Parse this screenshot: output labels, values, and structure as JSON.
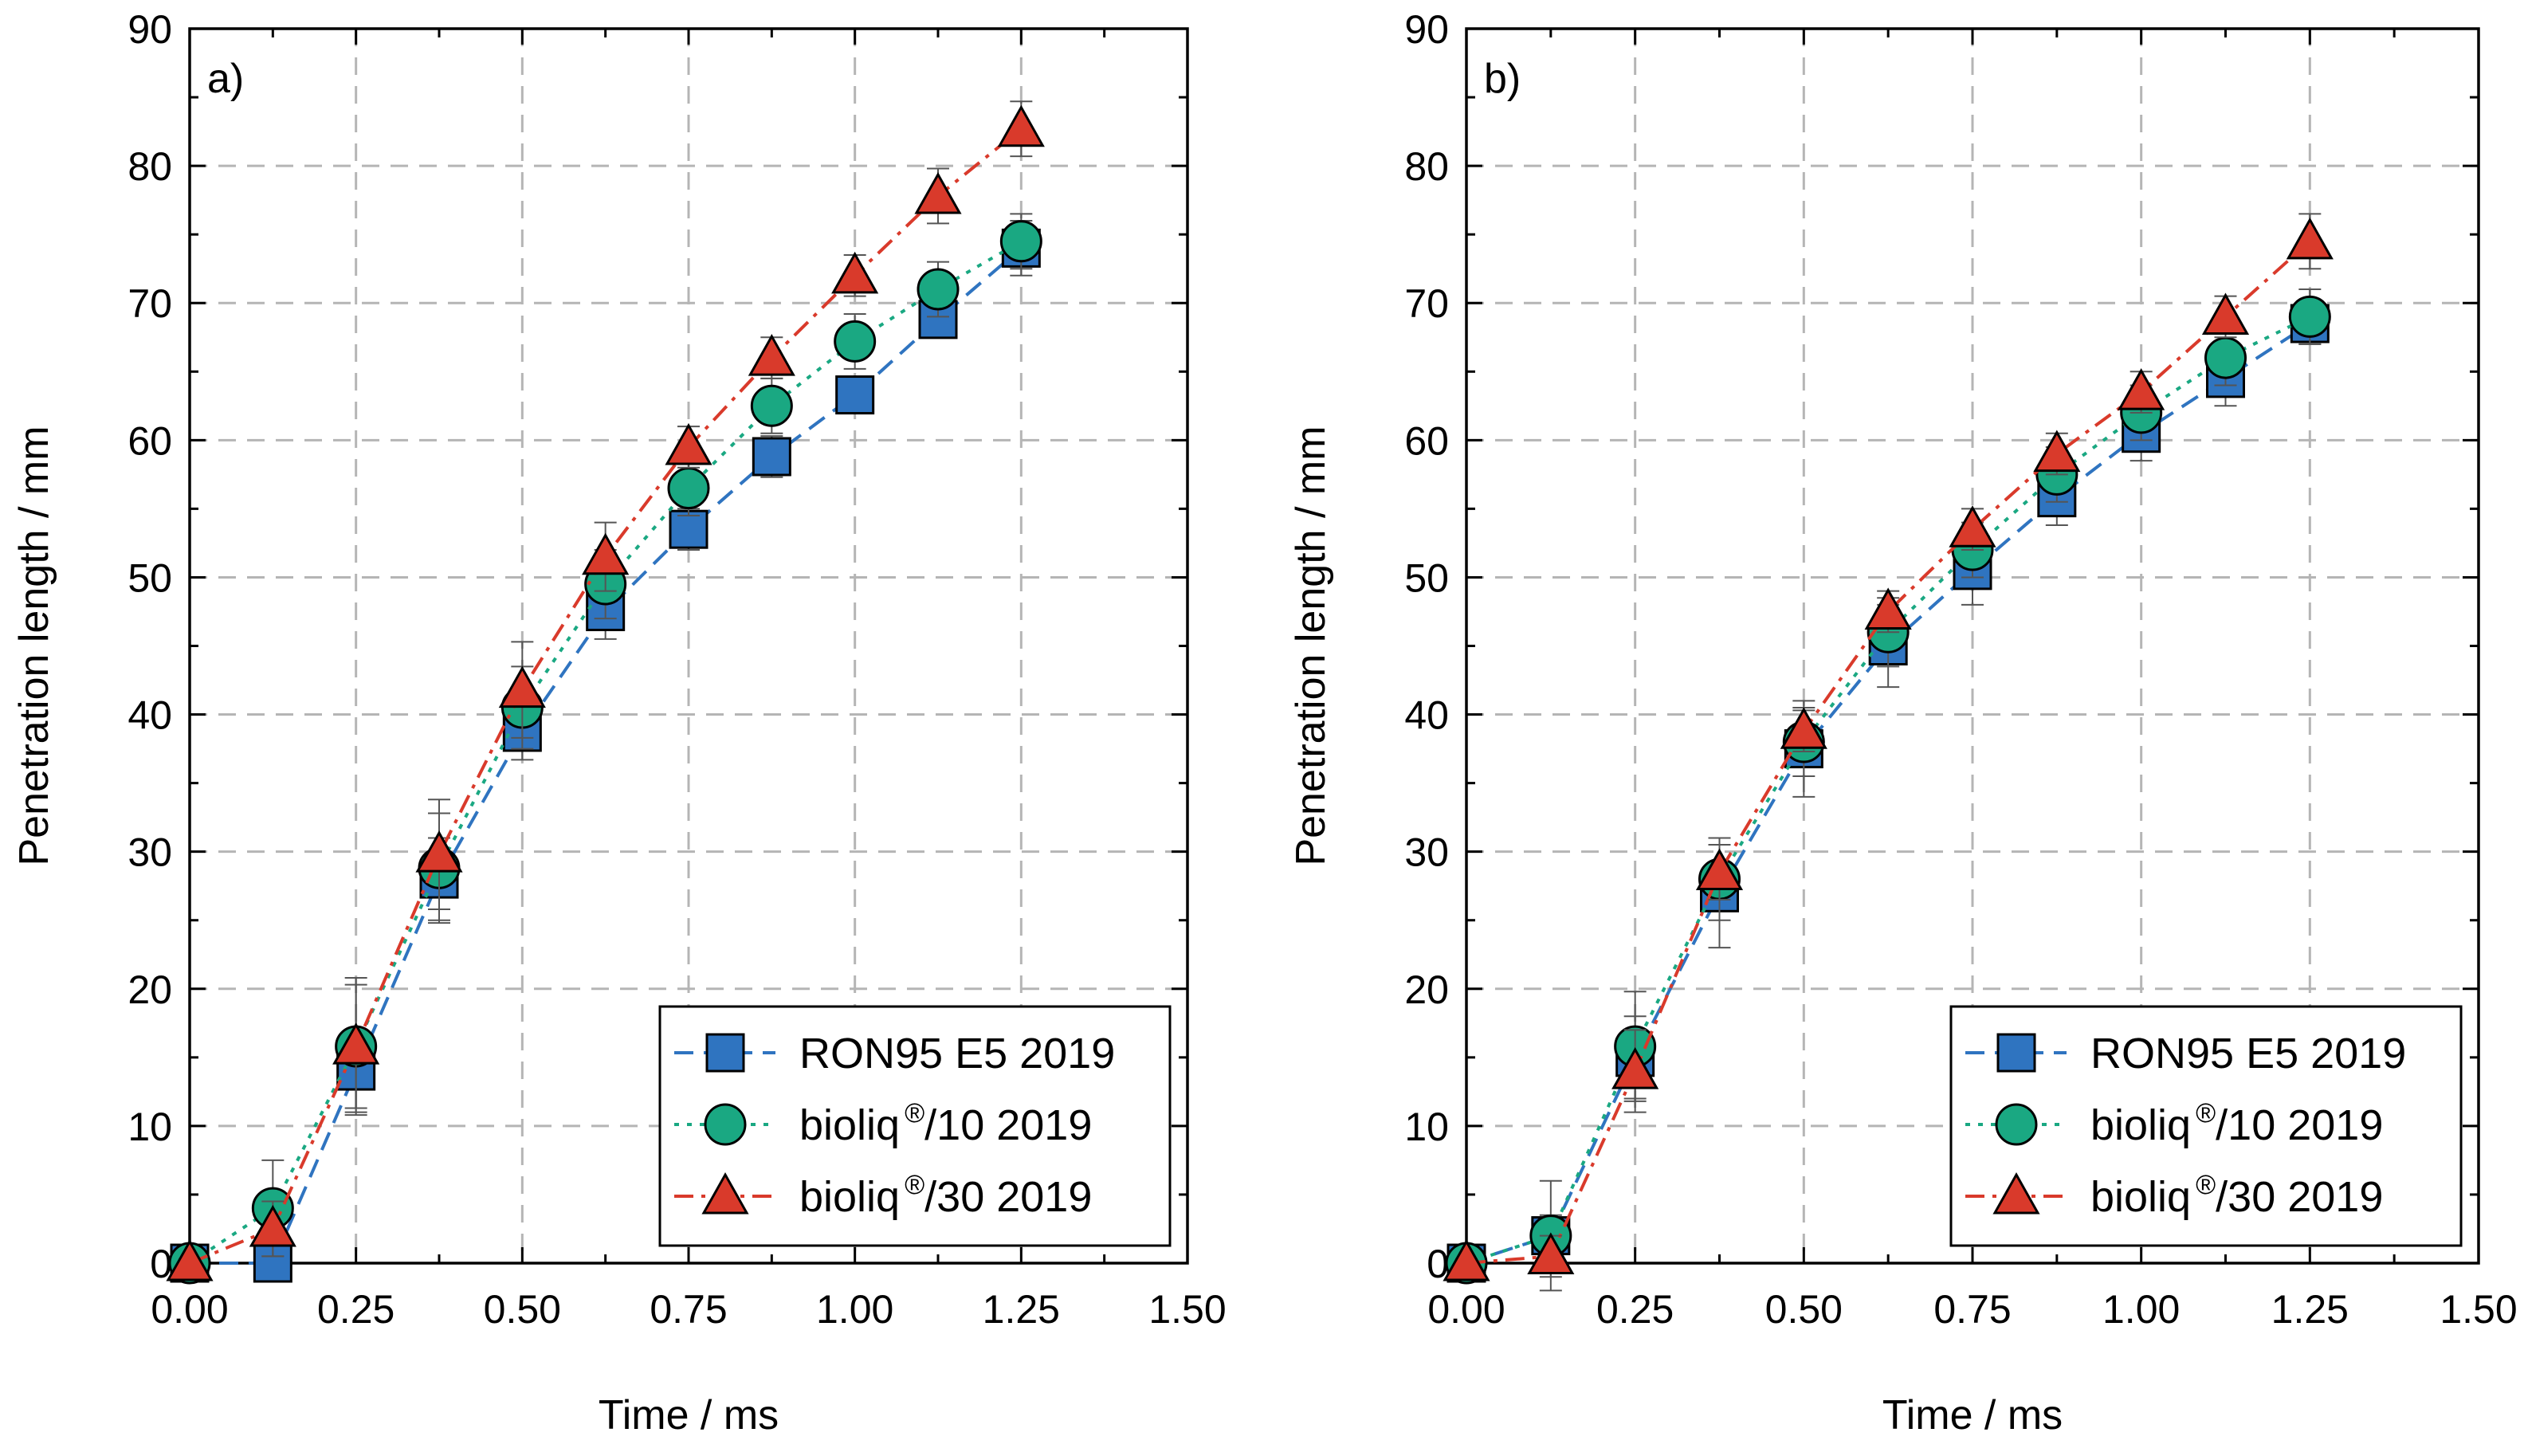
{
  "chart_data": [
    {
      "type": "line",
      "panel_label": "a)",
      "xlabel": "Time / ms",
      "ylabel": "Penetration length / mm",
      "xlim": [
        0,
        1.5
      ],
      "ylim": [
        0,
        90
      ],
      "xticks": [
        "0.00",
        "0.25",
        "0.50",
        "0.75",
        "1.00",
        "1.25",
        "1.50"
      ],
      "yticks": [
        "0",
        "10",
        "20",
        "30",
        "40",
        "50",
        "60",
        "70",
        "80",
        "90"
      ],
      "grid": true,
      "legend_position": "bottom-right",
      "series": [
        {
          "name": "RON95 E5 2019",
          "name_parts": [
            "RON95 E5 2019",
            "",
            ""
          ],
          "marker": "square",
          "color": "#2f74c0",
          "line": "dash",
          "points": [
            [
              0.0,
              0.0
            ],
            [
              0.125,
              0.0
            ],
            [
              0.25,
              14.0
            ],
            [
              0.375,
              28.0
            ],
            [
              0.5,
              38.7
            ],
            [
              0.625,
              47.5
            ],
            [
              0.75,
              53.5
            ],
            [
              0.875,
              58.8
            ],
            [
              1.0,
              63.3
            ],
            [
              1.125,
              68.8
            ],
            [
              1.25,
              74.0
            ]
          ],
          "errors": [
            0.3,
            0.3,
            3.0,
            3.0,
            2.0,
            2.0,
            1.5,
            1.5,
            1.3,
            1.3,
            2.0
          ]
        },
        {
          "name": "bioliq®/10 2019",
          "name_parts": [
            "bioliq",
            "®",
            "/10 2019"
          ],
          "marker": "circle",
          "color": "#1aa882",
          "line": "dot",
          "points": [
            [
              0.0,
              0.0
            ],
            [
              0.125,
              4.0
            ],
            [
              0.25,
              15.8
            ],
            [
              0.375,
              28.8
            ],
            [
              0.5,
              40.5
            ],
            [
              0.625,
              49.5
            ],
            [
              0.75,
              56.5
            ],
            [
              0.875,
              62.5
            ],
            [
              1.0,
              67.2
            ],
            [
              1.125,
              71.0
            ],
            [
              1.25,
              74.5
            ]
          ],
          "errors": [
            0.3,
            3.5,
            4.5,
            4.0,
            3.0,
            2.5,
            2.0,
            2.0,
            2.0,
            2.0,
            2.0
          ]
        },
        {
          "name": "bioliq®/30 2019",
          "name_parts": [
            "bioliq",
            "®",
            "/30 2019"
          ],
          "marker": "triangle",
          "color": "#d93a2b",
          "line": "dashdot",
          "points": [
            [
              0.0,
              0.0
            ],
            [
              0.125,
              2.5
            ],
            [
              0.25,
              15.8
            ],
            [
              0.375,
              29.8
            ],
            [
              0.5,
              41.8
            ],
            [
              0.625,
              51.5
            ],
            [
              0.75,
              59.5
            ],
            [
              0.875,
              66.0
            ],
            [
              1.0,
              72.0
            ],
            [
              1.125,
              77.8
            ],
            [
              1.25,
              82.7
            ]
          ],
          "errors": [
            0.3,
            2.0,
            5.0,
            4.0,
            3.5,
            2.5,
            1.5,
            1.5,
            1.5,
            2.0,
            2.0
          ]
        }
      ]
    },
    {
      "type": "line",
      "panel_label": "b)",
      "xlabel": "Time / ms",
      "ylabel": "Penetration length / mm",
      "xlim": [
        0,
        1.5
      ],
      "ylim": [
        0,
        90
      ],
      "xticks": [
        "0.00",
        "0.25",
        "0.50",
        "0.75",
        "1.00",
        "1.25",
        "1.50"
      ],
      "yticks": [
        "0",
        "10",
        "20",
        "30",
        "40",
        "50",
        "60",
        "70",
        "80",
        "90"
      ],
      "grid": true,
      "legend_position": "bottom-right",
      "series": [
        {
          "name": "RON95 E5 2019",
          "name_parts": [
            "RON95 E5 2019",
            "",
            ""
          ],
          "marker": "square",
          "color": "#2f74c0",
          "line": "dash",
          "points": [
            [
              0.0,
              0.0
            ],
            [
              0.125,
              2.0
            ],
            [
              0.25,
              15.0
            ],
            [
              0.375,
              27.0
            ],
            [
              0.5,
              37.5
            ],
            [
              0.625,
              45.0
            ],
            [
              0.75,
              50.5
            ],
            [
              0.875,
              55.8
            ],
            [
              1.0,
              60.5
            ],
            [
              1.125,
              64.5
            ],
            [
              1.25,
              68.5
            ]
          ],
          "errors": [
            0.3,
            1.5,
            3.0,
            4.0,
            3.5,
            3.0,
            2.5,
            2.0,
            2.0,
            2.0,
            1.5
          ]
        },
        {
          "name": "bioliq®/10 2019",
          "name_parts": [
            "bioliq",
            "®",
            "/10 2019"
          ],
          "marker": "circle",
          "color": "#1aa882",
          "line": "dot",
          "points": [
            [
              0.0,
              0.0
            ],
            [
              0.125,
              2.0
            ],
            [
              0.25,
              15.8
            ],
            [
              0.375,
              28.0
            ],
            [
              0.5,
              38.0
            ],
            [
              0.625,
              46.0
            ],
            [
              0.75,
              52.0
            ],
            [
              0.875,
              57.5
            ],
            [
              1.0,
              62.0
            ],
            [
              1.125,
              66.0
            ],
            [
              1.25,
              69.0
            ]
          ],
          "errors": [
            0.3,
            4.0,
            4.0,
            3.0,
            2.5,
            2.5,
            2.0,
            2.0,
            2.0,
            2.0,
            2.0
          ]
        },
        {
          "name": "bioliq®/30 2019",
          "name_parts": [
            "bioliq",
            "®",
            "/30 2019"
          ],
          "marker": "triangle",
          "color": "#d93a2b",
          "line": "dashdot",
          "points": [
            [
              0.0,
              0.0
            ],
            [
              0.125,
              0.5
            ],
            [
              0.25,
              14.0
            ],
            [
              0.375,
              28.5
            ],
            [
              0.5,
              38.8
            ],
            [
              0.625,
              47.5
            ],
            [
              0.75,
              53.5
            ],
            [
              0.875,
              59.0
            ],
            [
              1.0,
              63.5
            ],
            [
              1.125,
              69.0
            ],
            [
              1.25,
              74.5
            ]
          ],
          "errors": [
            0.3,
            1.5,
            3.0,
            2.0,
            1.5,
            1.5,
            1.5,
            1.5,
            1.5,
            1.5,
            2.0
          ]
        }
      ]
    }
  ]
}
